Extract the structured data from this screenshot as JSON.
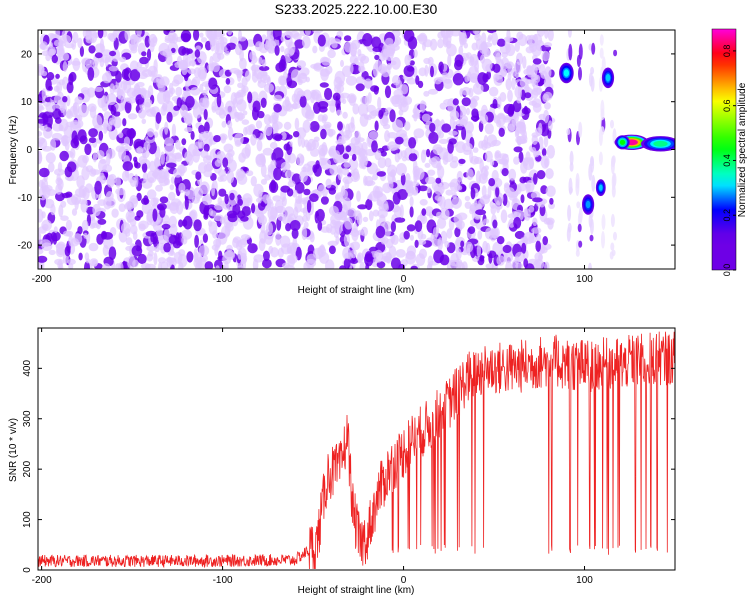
{
  "title": "S233.2025.222.10.00.E30",
  "chart_data": [
    {
      "type": "heatmap",
      "xlabel": "Height of straight line (km)",
      "ylabel": "Frequency (Hz)",
      "xlim": [
        -202,
        150
      ],
      "ylim": [
        -25,
        25
      ],
      "xticks": [
        -200,
        -100,
        0,
        100
      ],
      "yticks": [
        -20,
        -10,
        0,
        10,
        20
      ],
      "colorbar": {
        "label": "Normalized spectral amplitude",
        "range": [
          0.0,
          0.88
        ],
        "ticks": [
          0.0,
          0.2,
          0.4,
          0.6,
          0.8
        ],
        "colormap": [
          "#ff00ff",
          "#ff0000",
          "#ffff00",
          "#00ff00",
          "#00ffff",
          "#0000ff",
          "#ff00ff"
        ]
      },
      "background_noise": {
        "x_range": [
          -202,
          82
        ],
        "amplitude": 0.12,
        "color_light": "#e0c8ff",
        "color_dark": "#6a00e8"
      },
      "features": [
        {
          "x": 90,
          "y": 16,
          "w": 3,
          "h": 1.6,
          "amplitude": 0.32
        },
        {
          "x": 113,
          "y": 15,
          "w": 2.5,
          "h": 1.6,
          "amplitude": 0.3
        },
        {
          "x": 109,
          "y": -8,
          "w": 2,
          "h": 1.3,
          "amplitude": 0.3
        },
        {
          "x": 102,
          "y": -11.5,
          "w": 2.5,
          "h": 1.6,
          "amplitude": 0.28
        },
        {
          "x": 126,
          "y": 1.5,
          "w": 7,
          "h": 1.2,
          "amplitude": 0.85
        },
        {
          "x": 121,
          "y": 1.5,
          "w": 3,
          "h": 1.1,
          "amplitude": 0.45
        },
        {
          "x": 142,
          "y": 1.2,
          "w": 8,
          "h": 1.2,
          "amplitude": 0.38
        }
      ]
    },
    {
      "type": "line",
      "xlabel": "Height of straight line (km)",
      "ylabel": "SNR (10 * v/v)",
      "xlim": [
        -202,
        150
      ],
      "ylim": [
        0,
        480
      ],
      "xticks": [
        -200,
        -100,
        0,
        100
      ],
      "yticks": [
        0,
        100,
        200,
        300,
        400
      ],
      "color": "#ee2222",
      "envelope": {
        "x": [
          -202,
          -150,
          -100,
          -60,
          -48,
          -42,
          -35,
          -31,
          -28,
          -24,
          -20,
          -14,
          -8,
          -2,
          5,
          15,
          25,
          35,
          45,
          60,
          80,
          100,
          120,
          140,
          150
        ],
        "y": [
          18,
          18,
          18,
          20,
          50,
          190,
          200,
          270,
          120,
          50,
          70,
          150,
          200,
          225,
          260,
          290,
          330,
          380,
          400,
          400,
          415,
          405,
          410,
          420,
          420
        ]
      },
      "noise_amplitude": 12,
      "dropouts": {
        "x_range": [
          -20,
          45
        ],
        "extra_x": [
          80,
          82,
          84,
          92,
          96,
          99,
          103,
          106,
          110,
          113,
          116,
          119,
          122,
          125,
          128,
          131,
          134,
          137,
          140,
          143,
          146
        ],
        "min_value": 30
      }
    }
  ]
}
